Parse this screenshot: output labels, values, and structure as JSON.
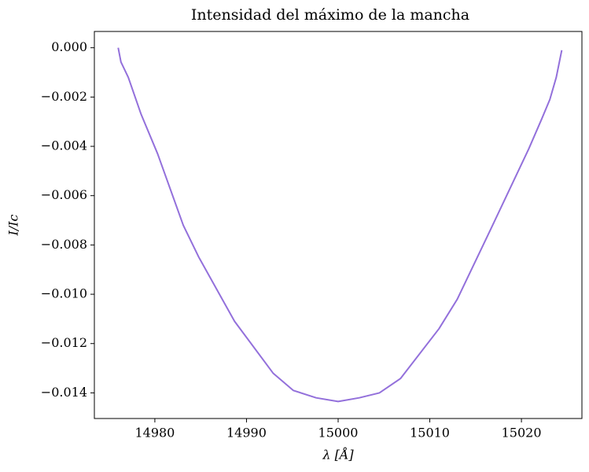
{
  "chart_data": {
    "type": "line",
    "title": "Intensidad del máximo de la mancha",
    "xlabel": "λ [Å]",
    "ylabel": "I/Ic",
    "x": [
      14976,
      14976.3,
      14977.1,
      14978.5,
      14980.3,
      14983.1,
      14984.8,
      14988.7,
      14992.9,
      14995.1,
      14997.6,
      15000,
      15002.3,
      15004.5,
      15006.8,
      15011,
      15013,
      15016.6,
      15020.8,
      15022.2,
      15023.1,
      15023.8,
      15024.4
    ],
    "series": [
      {
        "color": "#9370db",
        "values": [
          0,
          -0.00058,
          -0.0012,
          -0.0027,
          -0.0043,
          -0.0072,
          -0.0085,
          -0.0111,
          -0.0132,
          -0.0139,
          -0.0142,
          -0.01435,
          -0.0142,
          -0.014,
          -0.01342,
          -0.0114,
          -0.0102,
          -0.0074,
          -0.0041,
          -0.0029,
          -0.0021,
          -0.0012,
          -0.0001
        ]
      }
    ],
    "xlim": [
      14973.4,
      15026.6
    ],
    "ylim": [
      -0.01504,
      0.00066
    ],
    "xticks": [
      14980,
      14990,
      15000,
      15010,
      15020
    ],
    "yticks": [
      {
        "value": 0,
        "label": "0.000"
      },
      {
        "value": -0.002,
        "label": "−0.002"
      },
      {
        "value": -0.004,
        "label": "−0.004"
      },
      {
        "value": -0.006,
        "label": "−0.006"
      },
      {
        "value": -0.008,
        "label": "−0.008"
      },
      {
        "value": -0.01,
        "label": "−0.010"
      },
      {
        "value": -0.012,
        "label": "−0.012"
      },
      {
        "value": -0.014,
        "label": "−0.014"
      }
    ],
    "grid": false
  }
}
